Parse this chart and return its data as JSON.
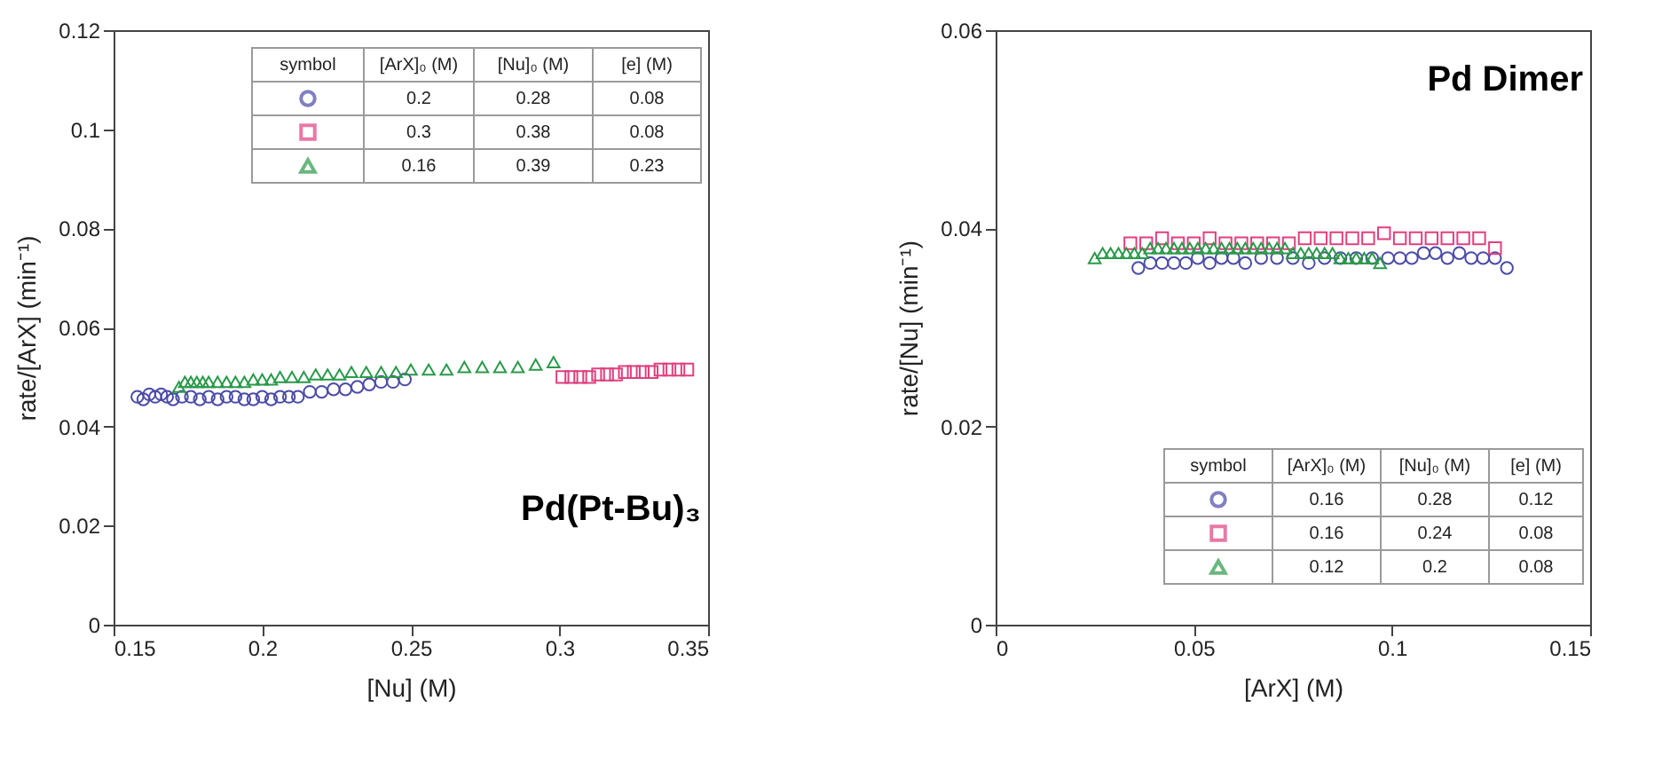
{
  "chart_data": [
    {
      "type": "scatter",
      "xlabel": "[Nu] (M)",
      "ylabel": "rate/[ArX]  (min⁻¹)",
      "xlim": [
        0.15,
        0.35
      ],
      "xticks": [
        0.15,
        0.2,
        0.25,
        0.3,
        0.35
      ],
      "ylim": [
        0,
        0.12
      ],
      "yticks": [
        0,
        0.02,
        0.04,
        0.06,
        0.08,
        0.1,
        0.12
      ],
      "grid": false,
      "annotations": [
        "symbol",
        "[ArX]₀ (M)",
        "[Nu]₀ (M)",
        "[e] (M)",
        "0.2",
        "0.28",
        "0.08",
        "0.3",
        "0.38",
        "0.08",
        "0.16",
        "0.39",
        "0.23",
        "Pd(Pt-Bu)₃"
      ],
      "series": [
        {
          "color": "#4b4ba8",
          "marker": "circle",
          "x": [
            0.158,
            0.16,
            0.162,
            0.164,
            0.166,
            0.168,
            0.17,
            0.173,
            0.176,
            0.179,
            0.182,
            0.185,
            0.188,
            0.191,
            0.194,
            0.197,
            0.2,
            0.203,
            0.206,
            0.209,
            0.212,
            0.216,
            0.22,
            0.224,
            0.228,
            0.232,
            0.236,
            0.24,
            0.244,
            0.248
          ],
          "values": [
            0.046,
            0.0455,
            0.0465,
            0.046,
            0.0465,
            0.046,
            0.0455,
            0.046,
            0.046,
            0.0455,
            0.046,
            0.0455,
            0.046,
            0.046,
            0.0455,
            0.0455,
            0.046,
            0.0455,
            0.046,
            0.046,
            0.046,
            0.047,
            0.047,
            0.0475,
            0.0475,
            0.048,
            0.0485,
            0.049,
            0.049,
            0.0495
          ]
        },
        {
          "color": "#e0407f",
          "marker": "square",
          "x": [
            0.301,
            0.304,
            0.307,
            0.31,
            0.313,
            0.316,
            0.319,
            0.322,
            0.325,
            0.328,
            0.331,
            0.334,
            0.337,
            0.34,
            0.343
          ],
          "values": [
            0.05,
            0.05,
            0.05,
            0.05,
            0.0505,
            0.0505,
            0.0505,
            0.051,
            0.051,
            0.051,
            0.051,
            0.0515,
            0.0515,
            0.0515,
            0.0515
          ]
        },
        {
          "color": "#2a9a4a",
          "marker": "triangle",
          "x": [
            0.172,
            0.174,
            0.176,
            0.178,
            0.18,
            0.182,
            0.185,
            0.188,
            0.191,
            0.194,
            0.197,
            0.2,
            0.203,
            0.206,
            0.21,
            0.214,
            0.218,
            0.222,
            0.226,
            0.23,
            0.235,
            0.24,
            0.245,
            0.25,
            0.256,
            0.262,
            0.268,
            0.274,
            0.28,
            0.286,
            0.292,
            0.298
          ],
          "values": [
            0.048,
            0.049,
            0.049,
            0.049,
            0.049,
            0.049,
            0.049,
            0.049,
            0.049,
            0.049,
            0.0495,
            0.0495,
            0.0495,
            0.05,
            0.05,
            0.05,
            0.0505,
            0.0505,
            0.0505,
            0.051,
            0.051,
            0.051,
            0.051,
            0.0515,
            0.0515,
            0.0515,
            0.052,
            0.052,
            0.052,
            0.052,
            0.0525,
            0.053
          ]
        }
      ]
    },
    {
      "type": "scatter",
      "xlabel": "[ArX]  (M)",
      "ylabel": "rate/[Nu]  (min⁻¹)",
      "xlim": [
        0,
        0.15
      ],
      "xticks": [
        0,
        0.05,
        0.1,
        0.15
      ],
      "ylim": [
        0,
        0.06
      ],
      "yticks": [
        0,
        0.02,
        0.04,
        0.06
      ],
      "grid": false,
      "annotations": [
        "symbol",
        "[ArX]₀ (M)",
        "[Nu]₀ (M)",
        "[e] (M)",
        "0.16",
        "0.28",
        "0.12",
        "0.16",
        "0.24",
        "0.08",
        "0.12",
        "0.2",
        "0.08",
        "Pd Dimer"
      ],
      "series": [
        {
          "color": "#4b4ba8",
          "marker": "circle",
          "x": [
            0.036,
            0.039,
            0.042,
            0.045,
            0.048,
            0.051,
            0.054,
            0.057,
            0.06,
            0.063,
            0.067,
            0.071,
            0.075,
            0.079,
            0.083,
            0.087,
            0.091,
            0.095,
            0.099,
            0.102,
            0.105,
            0.108,
            0.111,
            0.114,
            0.117,
            0.12,
            0.123,
            0.126,
            0.129
          ],
          "values": [
            0.036,
            0.0365,
            0.0365,
            0.0365,
            0.0365,
            0.037,
            0.0365,
            0.037,
            0.037,
            0.0365,
            0.037,
            0.037,
            0.037,
            0.0365,
            0.037,
            0.037,
            0.037,
            0.037,
            0.037,
            0.037,
            0.037,
            0.0375,
            0.0375,
            0.037,
            0.0375,
            0.037,
            0.037,
            0.037,
            0.036
          ]
        },
        {
          "color": "#e0407f",
          "marker": "square",
          "x": [
            0.034,
            0.038,
            0.042,
            0.046,
            0.05,
            0.054,
            0.058,
            0.062,
            0.066,
            0.07,
            0.074,
            0.078,
            0.082,
            0.086,
            0.09,
            0.094,
            0.098,
            0.102,
            0.106,
            0.11,
            0.114,
            0.118,
            0.122,
            0.126
          ],
          "values": [
            0.0385,
            0.0385,
            0.039,
            0.0385,
            0.0385,
            0.039,
            0.0385,
            0.0385,
            0.0385,
            0.0385,
            0.0385,
            0.039,
            0.039,
            0.039,
            0.039,
            0.039,
            0.0395,
            0.039,
            0.039,
            0.039,
            0.039,
            0.039,
            0.039,
            0.038
          ]
        },
        {
          "color": "#2a9a4a",
          "marker": "triangle",
          "x": [
            0.025,
            0.027,
            0.029,
            0.031,
            0.033,
            0.035,
            0.037,
            0.039,
            0.041,
            0.043,
            0.045,
            0.047,
            0.049,
            0.051,
            0.053,
            0.055,
            0.057,
            0.059,
            0.061,
            0.063,
            0.065,
            0.067,
            0.069,
            0.071,
            0.073,
            0.075,
            0.077,
            0.079,
            0.081,
            0.083,
            0.085,
            0.087,
            0.089,
            0.091,
            0.093,
            0.095,
            0.097
          ],
          "values": [
            0.037,
            0.0375,
            0.0375,
            0.0375,
            0.0375,
            0.0375,
            0.0375,
            0.038,
            0.038,
            0.038,
            0.038,
            0.038,
            0.038,
            0.038,
            0.038,
            0.038,
            0.038,
            0.038,
            0.038,
            0.038,
            0.038,
            0.038,
            0.038,
            0.038,
            0.038,
            0.0375,
            0.0375,
            0.0375,
            0.0375,
            0.0375,
            0.0375,
            0.037,
            0.037,
            0.037,
            0.037,
            0.037,
            0.0365
          ]
        }
      ]
    }
  ]
}
